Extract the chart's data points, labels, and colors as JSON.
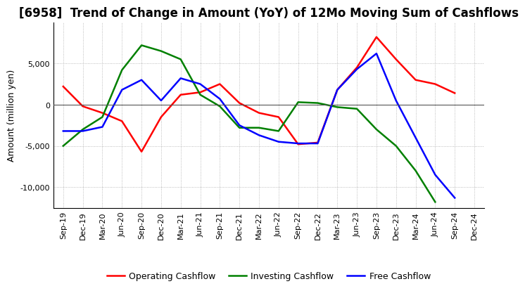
{
  "title": "[6958]  Trend of Change in Amount (YoY) of 12Mo Moving Sum of Cashflows",
  "ylabel": "Amount (million yen)",
  "x_labels": [
    "Sep-19",
    "Dec-19",
    "Mar-20",
    "Jun-20",
    "Sep-20",
    "Dec-20",
    "Mar-21",
    "Jun-21",
    "Sep-21",
    "Dec-21",
    "Mar-22",
    "Jun-22",
    "Sep-22",
    "Dec-22",
    "Mar-23",
    "Jun-23",
    "Sep-23",
    "Dec-23",
    "Mar-24",
    "Jun-24",
    "Sep-24",
    "Dec-24"
  ],
  "operating": [
    2200,
    -200,
    -1000,
    -2000,
    -5700,
    -1500,
    1200,
    1500,
    2500,
    200,
    -1000,
    -1500,
    -4800,
    -4600,
    1800,
    4500,
    8200,
    5500,
    3000,
    2500,
    1400,
    null
  ],
  "investing": [
    -5000,
    -3000,
    -1500,
    4200,
    7200,
    6500,
    5500,
    1200,
    -200,
    -2800,
    -2800,
    -3200,
    300,
    200,
    -300,
    -500,
    -3000,
    -5000,
    -8000,
    -11800,
    null,
    null
  ],
  "free": [
    -3200,
    -3200,
    -2700,
    1800,
    3000,
    500,
    3200,
    2500,
    700,
    -2500,
    -3700,
    -4500,
    -4700,
    -4700,
    1800,
    4300,
    6200,
    500,
    -4000,
    -8500,
    -11300,
    null
  ],
  "operating_color": "#FF0000",
  "investing_color": "#008000",
  "free_color": "#0000FF",
  "ylim": [
    -12500,
    10000
  ],
  "yticks": [
    -10000,
    -5000,
    0,
    5000
  ],
  "background_color": "#FFFFFF",
  "grid_color": "#AAAAAA",
  "title_fontsize": 12,
  "axis_fontsize": 9,
  "tick_fontsize": 8
}
